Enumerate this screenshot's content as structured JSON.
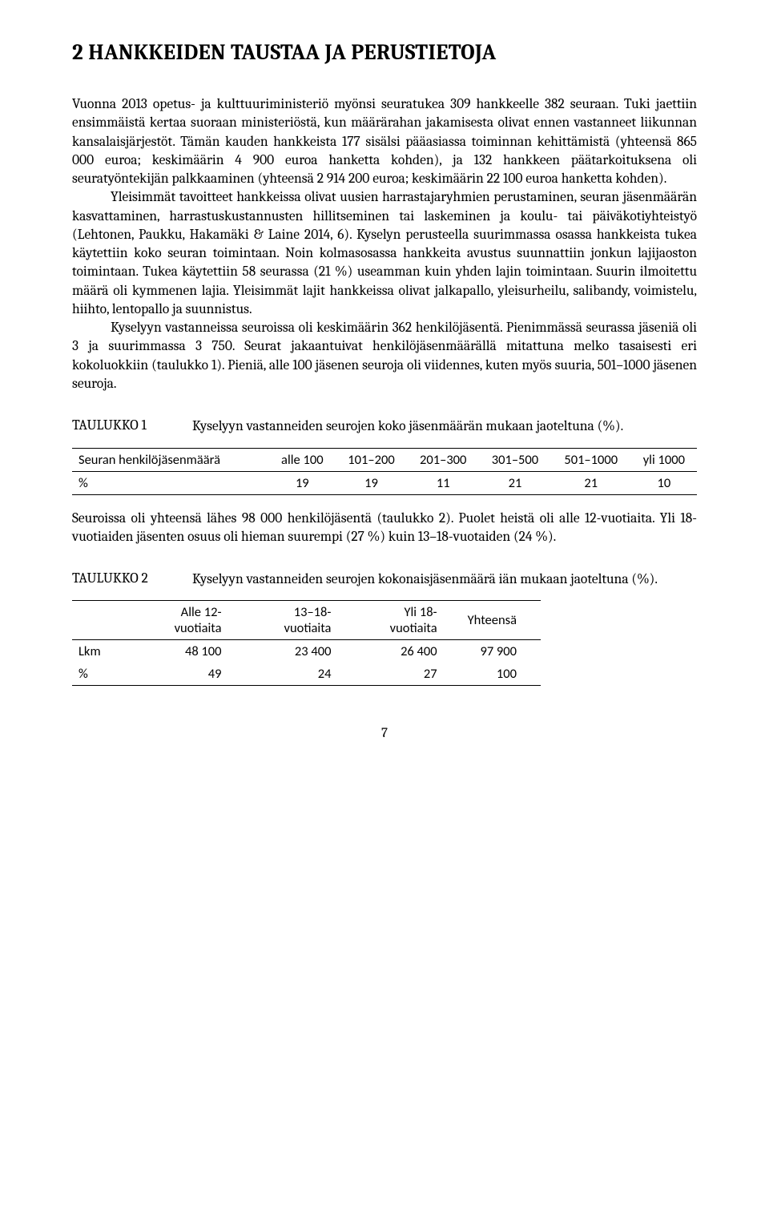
{
  "heading": "2   HANKKEIDEN TAUSTAA JA PERUSTIETOJA",
  "para1a": "Vuonna 2013 opetus- ja kulttuuriministeriö myönsi seuratukea 309 hankkeelle 382 seuraan. Tuki jaettiin ensimmäistä kertaa suoraan ministeriöstä, kun määrärahan jakamisesta olivat ennen vastanneet liikunnan kansalaisjärjestöt. Tämän kauden hankkeista 177 sisälsi pääasiassa toiminnan kehittämistä (yhteensä 865 000 euroa; keskimäärin 4 900 euroa hanketta kohden), ja 132 hankkeen päätarkoituksena oli seuratyöntekijän palkkaaminen (yhteensä 2 914 200 euroa; keskimäärin 22 100 euroa hanketta kohden).",
  "para1b": "Yleisimmät tavoitteet hankkeissa olivat uusien harrastajaryhmien perustaminen, seuran jäsenmäärän kasvattaminen, harrastuskustannusten hillitseminen tai laskeminen ja koulu- tai päiväkotiyhteistyö (Lehtonen, Paukku, Hakamäki & Laine 2014, 6). Kyselyn perusteella suurimmassa osassa hankkeista tukea käytettiin koko seuran toimintaan. Noin kolmasosassa hankkeita avustus suunnattiin jonkun lajijaoston toimintaan. Tukea käytettiin 58 seurassa (21 %) useamman kuin yhden lajin toimintaan. Suurin ilmoitettu määrä oli kymmenen lajia. Yleisimmät lajit hankkeissa olivat jalkapallo, yleisurheilu, salibandy, voimistelu, hiihto, lentopallo ja suunnistus.",
  "para1c": "Kyselyyn vastanneissa seuroissa oli keskimäärin 362 henkilöjäsentä. Pienimmässä seurassa jäseniä oli 3 ja suurimmassa 3 750. Seurat jakaantuivat henkilöjäsenmäärällä mitattuna melko tasaisesti eri kokoluokkiin (taulukko 1). Pieniä, alle 100 jäsenen seuroja oli viidennes, kuten myös suuria, 501–1000 jäsenen seuroja.",
  "taulukko1": {
    "label": "TAULUKKO 1",
    "caption": "Kyselyyn vastanneiden seurojen koko jäsenmäärän mukaan jaoteltuna (%).",
    "columns": [
      "Seuran henkilöjäsenmäärä",
      "alle 100",
      "101–200",
      "201–300",
      "301–500",
      "501–1000",
      "yli 1000"
    ],
    "row_label": "%",
    "row_values": [
      "19",
      "19",
      "11",
      "21",
      "21",
      "10"
    ]
  },
  "para2": "Seuroissa oli yhteensä lähes 98 000 henkilöjäsentä (taulukko 2). Puolet heistä oli alle 12-vuotiaita. Yli 18-vuotiaiden jäsenten osuus oli hieman suurempi (27 %) kuin 13–18-vuotaiden (24 %).",
  "taulukko2": {
    "label": "TAULUKKO 2",
    "caption": "Kyselyyn vastanneiden seurojen kokonaisjäsenmäärä iän mukaan jaoteltuna (%).",
    "columns": [
      "",
      "Alle 12-vuotiaita",
      "13–18-vuotiaita",
      "Yli 18-vuotiaita",
      "Yhteensä"
    ],
    "rows": [
      [
        "Lkm",
        "48 100",
        "23 400",
        "26 400",
        "97 900"
      ],
      [
        "%",
        "49",
        "24",
        "27",
        "100"
      ]
    ]
  },
  "page_number": "7"
}
